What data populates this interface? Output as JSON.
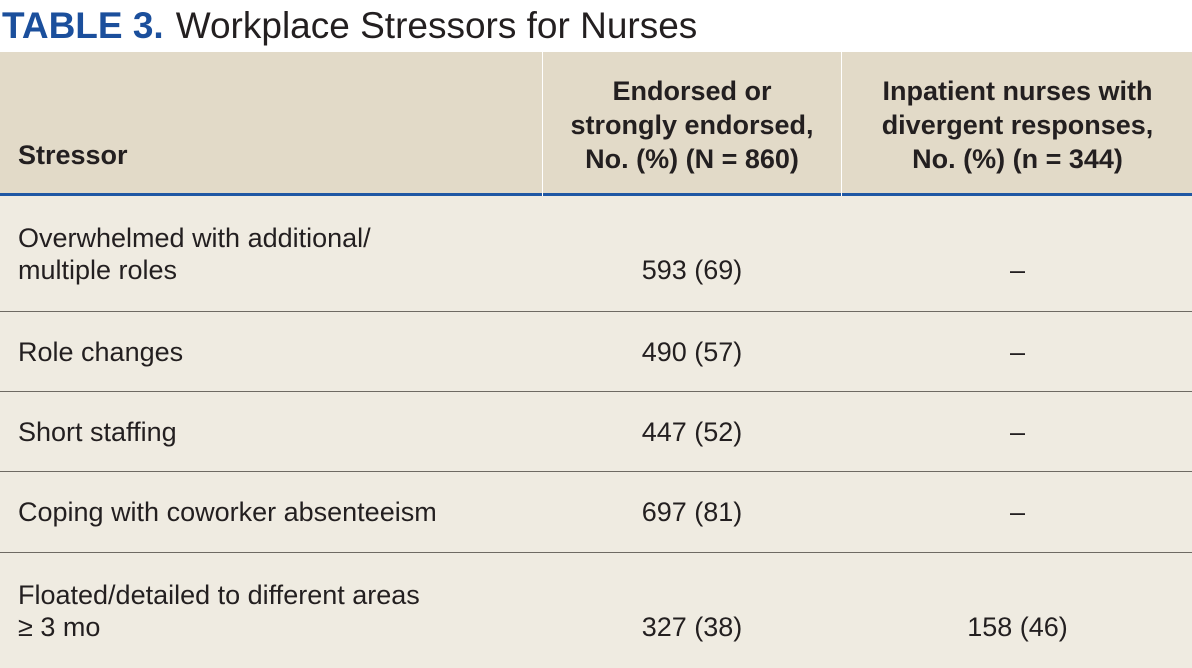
{
  "title": {
    "label": "TABLE 3.",
    "text": "Workplace Stressors for Nurses"
  },
  "colors": {
    "title_label": "#1b4f9c",
    "header_bg": "#e2dac8",
    "body_bg": "#efebe1",
    "header_rule": "#1f57a4",
    "row_rule": "#6e6a63"
  },
  "table": {
    "headers": {
      "stressor": "Stressor",
      "endorsed": [
        "Endorsed or",
        "strongly endorsed,",
        "No. (%) (N = 860)"
      ],
      "inpatient": [
        "Inpatient nurses with",
        "divergent responses,",
        "No. (%) (n = 344)"
      ]
    },
    "rows": [
      {
        "stressor": [
          "Overwhelmed with additional/",
          "multiple roles"
        ],
        "endorsed": "593 (69)",
        "inpatient": "–"
      },
      {
        "stressor": [
          "Role changes"
        ],
        "endorsed": "490 (57)",
        "inpatient": "–"
      },
      {
        "stressor": [
          "Short staffing"
        ],
        "endorsed": "447 (52)",
        "inpatient": "–"
      },
      {
        "stressor": [
          "Coping with coworker absenteeism"
        ],
        "endorsed": "697 (81)",
        "inpatient": "–"
      },
      {
        "stressor": [
          "Floated/detailed to different areas",
          "≥ 3 mo"
        ],
        "endorsed": "327 (38)",
        "inpatient": "158 (46)"
      }
    ]
  }
}
